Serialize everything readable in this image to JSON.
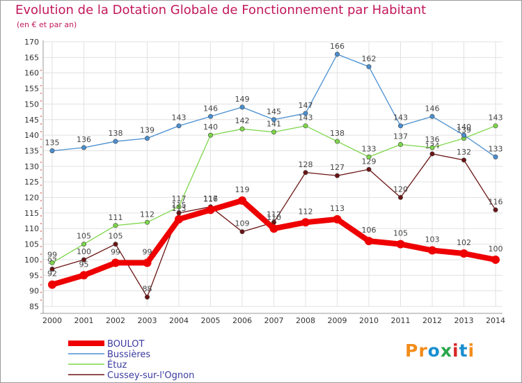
{
  "header": {
    "title": "Evolution de la Dotation Globale de Fonctionnement par Habitant",
    "subtitle": "(en € et par an)"
  },
  "logo": {
    "letters": [
      "P",
      "r",
      "o",
      "x",
      "i",
      "t",
      "i"
    ],
    "colors": [
      "#f28c1a",
      "#f28c1a",
      "#1a8fd0",
      "#2aa54a",
      "#d62828",
      "#1a8fd0",
      "#f28c1a"
    ]
  },
  "chart_data": {
    "type": "line",
    "title": "Evolution de la Dotation Globale de Fonctionnement par Habitant",
    "subtitle": "(en € et par an)",
    "xlabel": "",
    "ylabel": "",
    "x": [
      "2000",
      "2001",
      "2002",
      "2003",
      "2004",
      "2005",
      "2006",
      "2007",
      "2008",
      "2009",
      "2010",
      "2011",
      "2012",
      "2013",
      "2014"
    ],
    "ylim": [
      85,
      170
    ],
    "yticks": [
      85,
      90,
      95,
      100,
      105,
      110,
      115,
      120,
      125,
      130,
      135,
      140,
      145,
      150,
      155,
      160,
      165,
      170
    ],
    "grid": true,
    "legend_position": "bottom-left",
    "series": [
      {
        "name": "Cussey-sur-l'Ognon",
        "color": "#6b1414",
        "values": [
          97,
          100,
          105,
          88,
          115,
          117,
          109,
          112,
          128,
          127,
          129,
          120,
          134,
          132,
          116
        ]
      },
      {
        "name": "Étuz",
        "color": "#7dd64a",
        "values": [
          99,
          105,
          111,
          112,
          117,
          140,
          142,
          141,
          143,
          138,
          133,
          137,
          136,
          139,
          143
        ]
      },
      {
        "name": "Bussières",
        "color": "#4a8fd0",
        "values": [
          135,
          136,
          138,
          139,
          143,
          146,
          149,
          145,
          147,
          166,
          162,
          143,
          146,
          140,
          133
        ]
      },
      {
        "name": "BOULOT",
        "color": "#ee0000",
        "values": [
          92,
          95,
          99,
          99,
          113,
          116,
          119,
          110,
          112,
          113,
          106,
          105,
          103,
          102,
          100
        ]
      }
    ],
    "legend_order": [
      "BOULOT",
      "Bussières",
      "Étuz",
      "Cussey-sur-l'Ognon"
    ]
  }
}
